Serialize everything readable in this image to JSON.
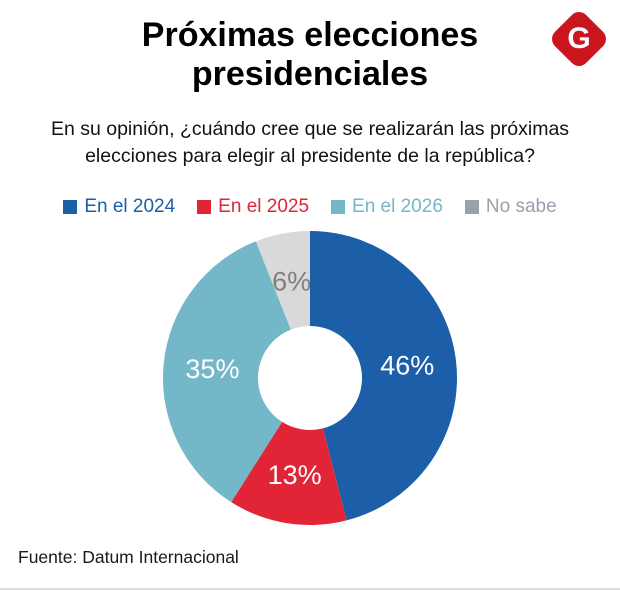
{
  "header": {
    "title_line1": "Próximas elecciones",
    "title_line2": "presidenciales"
  },
  "logo": {
    "letter": "G",
    "color": "#c9151e"
  },
  "question": {
    "line1": "En su opinión, ¿cuándo cree que se realizarán las próximas",
    "line2": "elecciones para elegir al presidente de la república?"
  },
  "chart_data": {
    "type": "pie",
    "subtype": "donut",
    "title": "Próximas elecciones presidenciales",
    "categories": [
      "En el 2024",
      "En el 2025",
      "En el 2026",
      "No sabe"
    ],
    "values": [
      46,
      13,
      35,
      6
    ],
    "labels": [
      "46%",
      "13%",
      "35%",
      "6%"
    ],
    "colors": [
      "#1c5fa8",
      "#e12536",
      "#74b7c9",
      "#d9d9d9"
    ],
    "label_colors": [
      "#ffffff",
      "#ffffff",
      "#ffffff",
      "#7f7f7f"
    ],
    "legend_colors": [
      "#1c5fa8",
      "#e12536",
      "#74b7c9",
      "#99a1ac"
    ],
    "legend_position": "top",
    "start_angle_deg": 0,
    "direction": "clockwise"
  },
  "footer": {
    "source": "Fuente: Datum Internacional"
  }
}
